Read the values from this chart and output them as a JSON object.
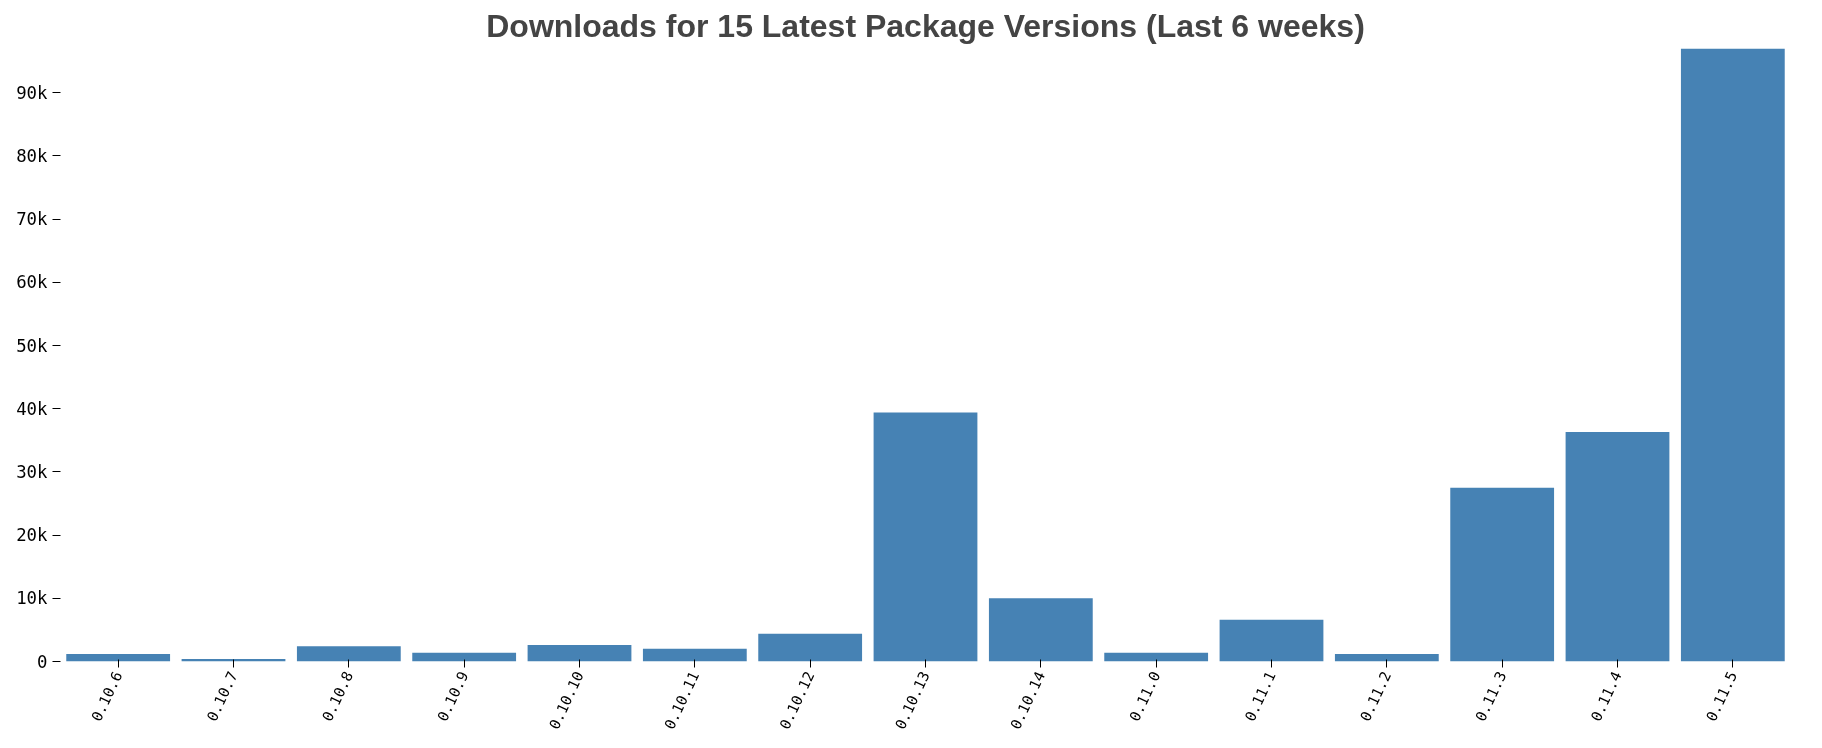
{
  "chart_data": {
    "type": "bar",
    "title": "Downloads for 15 Latest Package Versions (Last 6 weeks)",
    "categories": [
      "0.10.6",
      "0.10.7",
      "0.10.8",
      "0.10.9",
      "0.10.10",
      "0.10.11",
      "0.10.12",
      "0.10.13",
      "0.10.14",
      "0.11.0",
      "0.11.1",
      "0.11.2",
      "0.11.3",
      "0.11.4",
      "0.11.5"
    ],
    "values": [
      1200,
      400,
      2400,
      1400,
      2600,
      2000,
      4400,
      39400,
      10000,
      1400,
      6600,
      1200,
      27500,
      36300,
      97000
    ],
    "color": "#4682b4",
    "ylim": [
      0,
      97000
    ],
    "yticks": [
      0,
      {
        "value": 10000,
        "label": "10k"
      },
      {
        "value": 20000,
        "label": "20k"
      },
      {
        "value": 30000,
        "label": "30k"
      },
      {
        "value": 40000,
        "label": "40k"
      },
      {
        "value": 50000,
        "label": "50k"
      },
      {
        "value": 60000,
        "label": "60k"
      },
      {
        "value": 70000,
        "label": "70k"
      },
      {
        "value": 80000,
        "label": "80k"
      },
      {
        "value": 90000,
        "label": "90k"
      }
    ],
    "grid": false
  }
}
